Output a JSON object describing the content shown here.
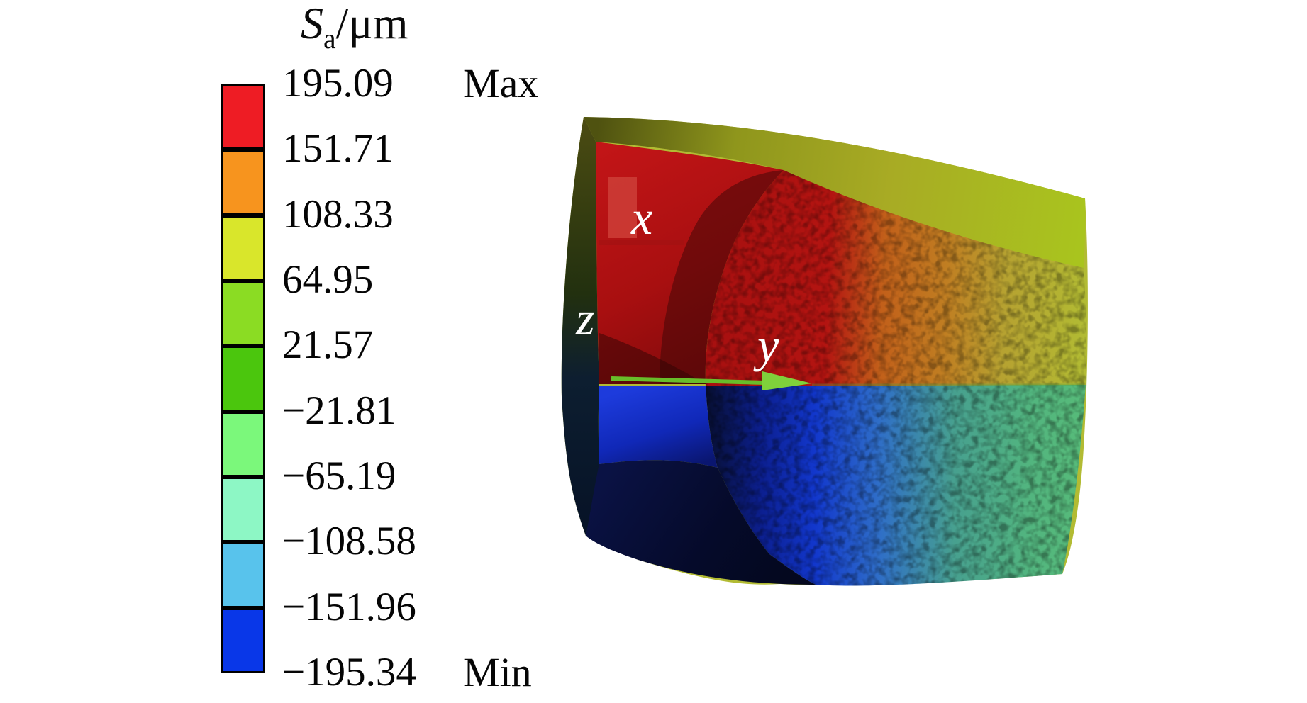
{
  "page": {
    "background": "#ffffff"
  },
  "legend": {
    "title_symbol": "S",
    "title_sub": "a",
    "title_unit": "/μm",
    "max_label": "Max",
    "min_label": "Min",
    "tick_labels": [
      "195.09",
      "151.71",
      "108.33",
      "64.95",
      "21.57",
      "−21.81",
      "−65.19",
      "−108.58",
      "−151.96",
      "−195.34"
    ],
    "band_colors": [
      "#ee1c24",
      "#f7941e",
      "#d9e62b",
      "#8bdc23",
      "#4bc60d",
      "#7bf87b",
      "#8df7c5",
      "#58c3ec",
      "#0937e8"
    ],
    "border_color": "#000000"
  },
  "model": {
    "axis_x": "x",
    "axis_y": "y",
    "axis_z": "z",
    "arrow_color": "#76c72f"
  },
  "chart_data": {
    "type": "heatmap",
    "title": "Sa/μm",
    "legend_title": "Sa/μm",
    "legend_position": "left",
    "colorbar_levels": [
      195.09,
      151.71,
      108.33,
      64.95,
      21.57,
      -21.81,
      -65.19,
      -108.58,
      -151.96,
      -195.34
    ],
    "colorbar_colors_top_to_bottom": [
      "#ee1c24",
      "#f7941e",
      "#d9e62b",
      "#8bdc23",
      "#4bc60d",
      "#7bf87b",
      "#8df7c5",
      "#58c3ec",
      "#0937e8"
    ],
    "value_range": [
      -195.34,
      195.09
    ],
    "max_annotation": "Max",
    "min_annotation": "Min",
    "axis_triad_labels": [
      "x",
      "y",
      "z"
    ],
    "plot_style": "3D finite-element displacement contour on a half ring cross-section; positive (red-orange-yellow) upper half, negative (blue-cyan-teal) lower half"
  }
}
